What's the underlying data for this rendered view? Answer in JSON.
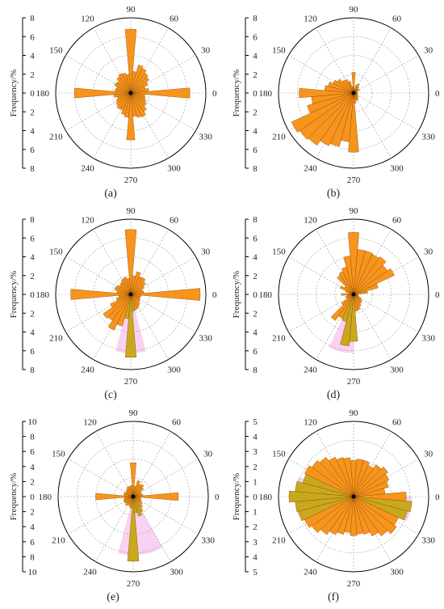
{
  "colors": {
    "bar": "#f7941d",
    "bar_stroke": "#8a4a00",
    "highlight": "#f7c6ee",
    "highlight_bar": "#c9a81f",
    "grid": "#9a9a9a",
    "axis": "#000000"
  },
  "chart_data": [
    {
      "id": "a",
      "label": "(a)",
      "type": "polar-bar",
      "ylabel": "Frequency/%",
      "rmax": 8,
      "radial_ticks": [
        "8",
        "6",
        "4",
        "2",
        "0",
        "2",
        "4",
        "6",
        "8"
      ],
      "angle_labels": [
        "90",
        "60",
        "30",
        "0",
        "330",
        "300",
        "270",
        "240",
        "210",
        "180",
        "150",
        "120"
      ],
      "bin_width_deg": 10,
      "bins_deg": [
        0,
        10,
        20,
        30,
        40,
        50,
        60,
        70,
        80,
        90,
        100,
        110,
        120,
        130,
        140,
        150,
        160,
        170,
        180,
        190,
        200,
        210,
        220,
        230,
        240,
        250,
        260,
        270,
        280,
        290,
        300,
        310,
        320,
        330,
        340,
        350
      ],
      "values": [
        6.3,
        1.9,
        1.6,
        2.0,
        2.4,
        2.6,
        2.9,
        3.1,
        2.3,
        6.8,
        2.0,
        2.2,
        2.3,
        2.1,
        1.8,
        1.9,
        1.6,
        1.7,
        6.0,
        1.8,
        1.5,
        1.7,
        1.9,
        2.1,
        2.0,
        2.4,
        2.6,
        5.0,
        2.5,
        2.7,
        2.8,
        2.4,
        2.0,
        1.8,
        1.6,
        1.5
      ],
      "highlight": null
    },
    {
      "id": "b",
      "label": "(b)",
      "type": "polar-bar",
      "ylabel": "Frequency/%",
      "rmax": 8,
      "radial_ticks": [
        "8",
        "6",
        "4",
        "2",
        "0",
        "2",
        "4",
        "6",
        "8"
      ],
      "angle_labels": [
        "90",
        "60",
        "30",
        "0",
        "330",
        "300",
        "270",
        "240",
        "210",
        "180",
        "150",
        "120"
      ],
      "bin_width_deg": 10,
      "bins_deg": [
        0,
        10,
        20,
        30,
        40,
        50,
        60,
        70,
        80,
        90,
        100,
        110,
        120,
        130,
        140,
        150,
        160,
        170,
        180,
        190,
        200,
        210,
        220,
        230,
        240,
        250,
        260,
        270,
        280,
        290,
        300,
        310,
        320,
        330,
        340,
        350
      ],
      "values": [
        0.5,
        0.3,
        0.4,
        0.7,
        0.6,
        0.8,
        1.1,
        0.9,
        0.4,
        2.2,
        0.7,
        1.3,
        1.6,
        1.7,
        2.1,
        2.4,
        2.8,
        3.1,
        5.8,
        4.5,
        5.1,
        7.3,
        7.0,
        6.8,
        6.2,
        5.9,
        5.2,
        6.3,
        1.1,
        0.8,
        0.9,
        0.7,
        0.6,
        0.5,
        0.4,
        0.4
      ],
      "highlight": null
    },
    {
      "id": "c",
      "label": "(c)",
      "type": "polar-bar",
      "ylabel": "Frequency/%",
      "rmax": 8,
      "radial_ticks": [
        "8",
        "6",
        "4",
        "2",
        "0",
        "2",
        "4",
        "6",
        "8"
      ],
      "angle_labels": [
        "90",
        "60",
        "30",
        "0",
        "330",
        "300",
        "270",
        "240",
        "210",
        "180",
        "150",
        "120"
      ],
      "bin_width_deg": 10,
      "bins_deg": [
        0,
        10,
        20,
        30,
        40,
        50,
        60,
        70,
        80,
        90,
        100,
        110,
        120,
        130,
        140,
        150,
        160,
        170,
        180,
        190,
        200,
        210,
        220,
        230,
        240,
        250,
        260,
        270,
        280,
        290,
        300,
        310,
        320,
        330,
        340,
        350
      ],
      "values": [
        7.4,
        1.4,
        1.3,
        1.6,
        1.9,
        2.2,
        2.1,
        2.5,
        2.0,
        6.9,
        1.7,
        1.9,
        1.8,
        1.6,
        1.5,
        1.7,
        1.8,
        1.5,
        6.4,
        1.3,
        1.6,
        2.4,
        3.6,
        3.4,
        4.2,
        3.5,
        2.6,
        6.7,
        1.8,
        1.7,
        1.6,
        1.4,
        1.2,
        1.1,
        1.0,
        1.1
      ],
      "highlight": {
        "from_deg": 255,
        "to_deg": 285
      }
    },
    {
      "id": "d",
      "label": "(d)",
      "type": "polar-bar",
      "ylabel": "Frequency/%",
      "rmax": 8,
      "radial_ticks": [
        "8",
        "6",
        "4",
        "2",
        "0",
        "2",
        "4",
        "6",
        "8"
      ],
      "angle_labels": [
        "90",
        "60",
        "30",
        "0",
        "330",
        "300",
        "270",
        "240",
        "210",
        "180",
        "150",
        "120"
      ],
      "bin_width_deg": 10,
      "bins_deg": [
        0,
        10,
        20,
        30,
        40,
        50,
        60,
        70,
        80,
        90,
        100,
        110,
        120,
        130,
        140,
        150,
        160,
        170,
        180,
        190,
        200,
        210,
        220,
        230,
        240,
        250,
        260,
        270,
        280,
        290,
        300,
        310,
        320,
        330,
        340,
        350
      ],
      "values": [
        0.4,
        1.5,
        2.7,
        4.8,
        4.4,
        4.9,
        4.7,
        4.8,
        4.8,
        6.6,
        4.1,
        3.0,
        2.7,
        2.5,
        1.2,
        1.6,
        0.9,
        0.5,
        1.3,
        0.7,
        0.9,
        0.8,
        1.6,
        3.4,
        2.8,
        3.0,
        5.5,
        5.0,
        1.8,
        1.7,
        1.4,
        1.2,
        1.1,
        0.9,
        0.6,
        0.5
      ],
      "highlight": {
        "from_deg": 245,
        "to_deg": 270
      }
    },
    {
      "id": "e",
      "label": "(e)",
      "type": "polar-bar",
      "ylabel": "Frequency/%",
      "rmax": 10,
      "radial_ticks": [
        "10",
        "8",
        "6",
        "4",
        "2",
        "0",
        "2",
        "4",
        "6",
        "8",
        "10"
      ],
      "angle_labels": [
        "90",
        "60",
        "30",
        "0",
        "330",
        "300",
        "270",
        "240",
        "210",
        "180",
        "150",
        "120"
      ],
      "bin_width_deg": 10,
      "bins_deg": [
        0,
        10,
        20,
        30,
        40,
        50,
        60,
        70,
        80,
        90,
        100,
        110,
        120,
        130,
        140,
        150,
        160,
        170,
        180,
        190,
        200,
        210,
        220,
        230,
        240,
        250,
        260,
        270,
        280,
        290,
        300,
        310,
        320,
        330,
        340,
        350
      ],
      "values": [
        6.0,
        1.3,
        1.1,
        1.2,
        1.7,
        2.0,
        1.8,
        2.2,
        1.4,
        4.5,
        1.5,
        1.4,
        1.5,
        1.3,
        1.2,
        1.1,
        1.3,
        1.2,
        5.0,
        1.2,
        1.3,
        1.4,
        1.3,
        1.5,
        1.2,
        1.4,
        1.6,
        8.6,
        2.2,
        2.7,
        2.3,
        1.8,
        1.5,
        1.2,
        1.1,
        1.0
      ],
      "highlight": {
        "from_deg": 255,
        "to_deg": 300
      }
    },
    {
      "id": "f",
      "label": "(f)",
      "type": "polar-bar",
      "ylabel": "Frequency/%",
      "rmax": 5,
      "radial_ticks": [
        "5",
        "4",
        "3",
        "2",
        "1",
        "0",
        "1",
        "2",
        "3",
        "4",
        "5"
      ],
      "angle_labels": [
        "90",
        "60",
        "30",
        "0",
        "330",
        "300",
        "270",
        "240",
        "210",
        "180",
        "150",
        "120"
      ],
      "bin_width_deg": 10,
      "bins_deg": [
        0,
        10,
        20,
        30,
        40,
        50,
        60,
        70,
        80,
        90,
        100,
        110,
        120,
        130,
        140,
        150,
        160,
        170,
        180,
        190,
        200,
        210,
        220,
        230,
        240,
        250,
        260,
        270,
        280,
        290,
        300,
        310,
        320,
        330,
        340,
        350
      ],
      "values": [
        3.5,
        2.1,
        2.4,
        2.6,
        2.8,
        2.6,
        2.3,
        2.5,
        2.5,
        2.4,
        2.6,
        2.7,
        2.9,
        3.2,
        3.4,
        3.6,
        3.5,
        3.9,
        4.3,
        3.9,
        3.8,
        3.6,
        3.4,
        3.1,
        2.8,
        2.6,
        2.4,
        2.6,
        2.5,
        2.6,
        2.9,
        3.2,
        3.5,
        3.3,
        3.7,
        3.9
      ],
      "highlight": {
        "from_deg": 160,
        "to_deg": 200,
        "also": {
          "from_deg": 335,
          "to_deg": 360
        }
      }
    }
  ]
}
